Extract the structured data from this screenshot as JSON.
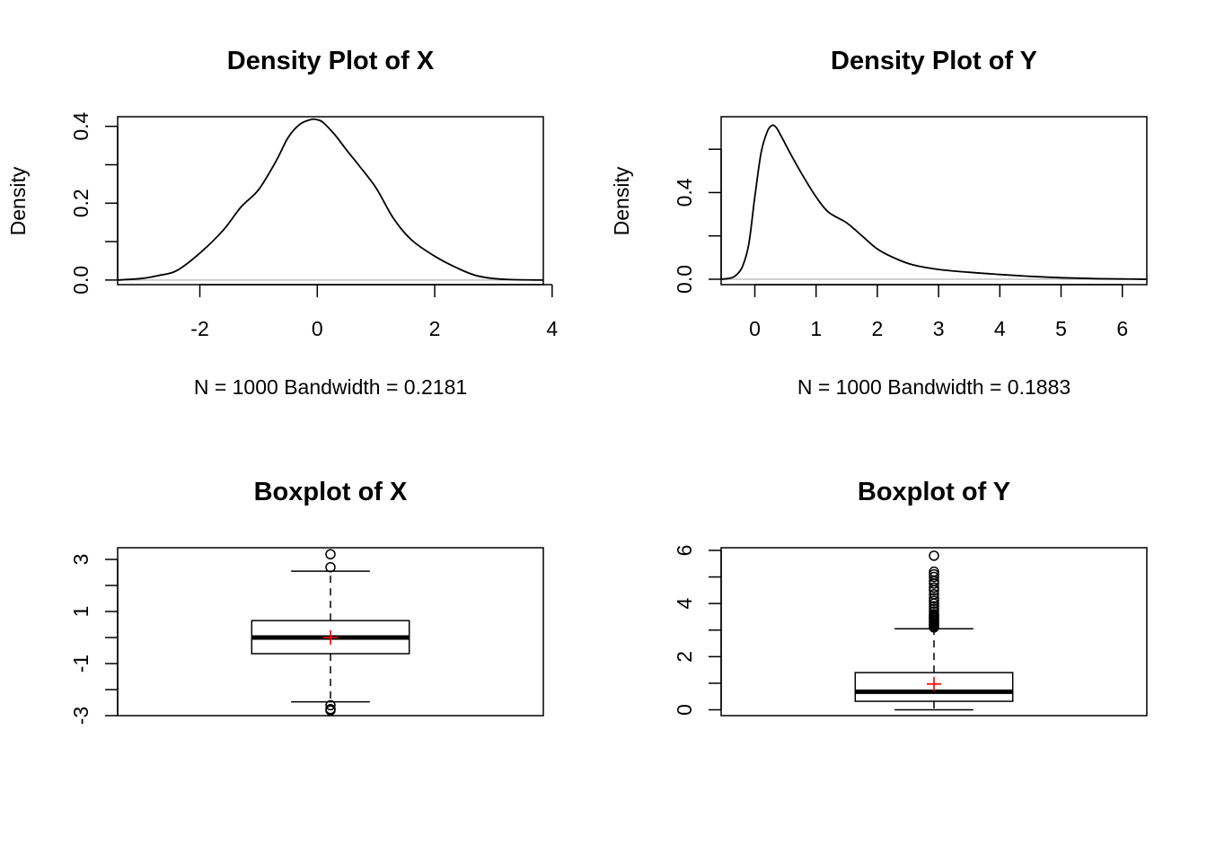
{
  "chart_data": [
    {
      "type": "line",
      "title": "Density Plot of X",
      "xlabel": "N = 1000   Bandwidth = 0.2181",
      "ylabel": "Density",
      "xlim": [
        -3.4,
        3.85
      ],
      "ylim": [
        -0.012,
        0.425
      ],
      "xticks": [
        "-2",
        "0",
        "2",
        "4"
      ],
      "yticks": [
        "0.0",
        "0.2",
        "0.4"
      ],
      "x": [
        -3.4,
        -3.0,
        -2.7,
        -2.4,
        -2.0,
        -1.6,
        -1.3,
        -1.0,
        -0.7,
        -0.5,
        -0.3,
        -0.1,
        0.0,
        0.1,
        0.3,
        0.5,
        0.7,
        1.0,
        1.3,
        1.6,
        2.0,
        2.4,
        2.7,
        3.0,
        3.3,
        3.85
      ],
      "y": [
        0.0,
        0.004,
        0.012,
        0.024,
        0.07,
        0.13,
        0.19,
        0.235,
        0.31,
        0.37,
        0.405,
        0.418,
        0.417,
        0.41,
        0.378,
        0.338,
        0.3,
        0.24,
        0.16,
        0.105,
        0.062,
        0.03,
        0.012,
        0.004,
        0.001,
        0.0
      ]
    },
    {
      "type": "line",
      "title": "Density Plot of Y",
      "xlabel": "N = 1000   Bandwidth = 0.1883",
      "ylabel": "Density",
      "xlim": [
        -0.55,
        6.4
      ],
      "ylim": [
        -0.025,
        0.75
      ],
      "xticks": [
        "0",
        "1",
        "2",
        "3",
        "4",
        "5",
        "6"
      ],
      "yticks": [
        "0.0",
        "0.4"
      ],
      "x": [
        -0.55,
        -0.4,
        -0.3,
        -0.2,
        -0.1,
        0.0,
        0.1,
        0.2,
        0.28,
        0.35,
        0.45,
        0.6,
        0.8,
        1.0,
        1.2,
        1.5,
        1.75,
        2.0,
        2.3,
        2.6,
        3.0,
        3.5,
        4.0,
        4.5,
        5.0,
        5.5,
        6.0,
        6.4
      ],
      "y": [
        0.0,
        0.005,
        0.02,
        0.06,
        0.16,
        0.38,
        0.58,
        0.68,
        0.71,
        0.7,
        0.65,
        0.57,
        0.47,
        0.38,
        0.31,
        0.26,
        0.2,
        0.14,
        0.095,
        0.065,
        0.045,
        0.032,
        0.022,
        0.013,
        0.007,
        0.003,
        0.001,
        0.0
      ]
    },
    {
      "type": "boxplot",
      "title": "Boxplot of X",
      "ylim": [
        -3.0,
        3.45
      ],
      "yticks": [
        "-3",
        "-1",
        "1",
        "3"
      ],
      "yticks_values": [
        -3,
        -1,
        1,
        3
      ],
      "minor_yticks_values": [
        -2,
        0,
        2
      ],
      "median": 0.0,
      "q1": -0.62,
      "q3": 0.65,
      "whisker_low": -2.47,
      "whisker_high": 2.55,
      "mean": 0.0,
      "outliers": [
        3.2,
        2.7,
        -2.6,
        -2.75,
        -2.8
      ],
      "colors": {
        "mean_marker": "#ff0000"
      }
    },
    {
      "type": "boxplot",
      "title": "Boxplot of Y",
      "ylim": [
        -0.22,
        6.1
      ],
      "yticks": [
        "0",
        "2",
        "4",
        "6"
      ],
      "yticks_values": [
        0,
        2,
        4,
        6
      ],
      "minor_yticks_values": [
        1,
        3,
        5
      ],
      "median": 0.68,
      "q1": 0.32,
      "q3": 1.4,
      "whisker_low": 0.0,
      "whisker_high": 3.05,
      "mean": 0.97,
      "outliers": [
        3.1,
        3.15,
        3.2,
        3.25,
        3.3,
        3.35,
        3.4,
        3.45,
        3.5,
        3.55,
        3.6,
        3.7,
        3.8,
        3.9,
        4.0,
        4.1,
        4.2,
        4.35,
        4.5,
        4.6,
        4.75,
        4.85,
        5.0,
        5.1,
        5.2,
        5.8
      ],
      "colors": {
        "mean_marker": "#ff0000"
      }
    }
  ]
}
